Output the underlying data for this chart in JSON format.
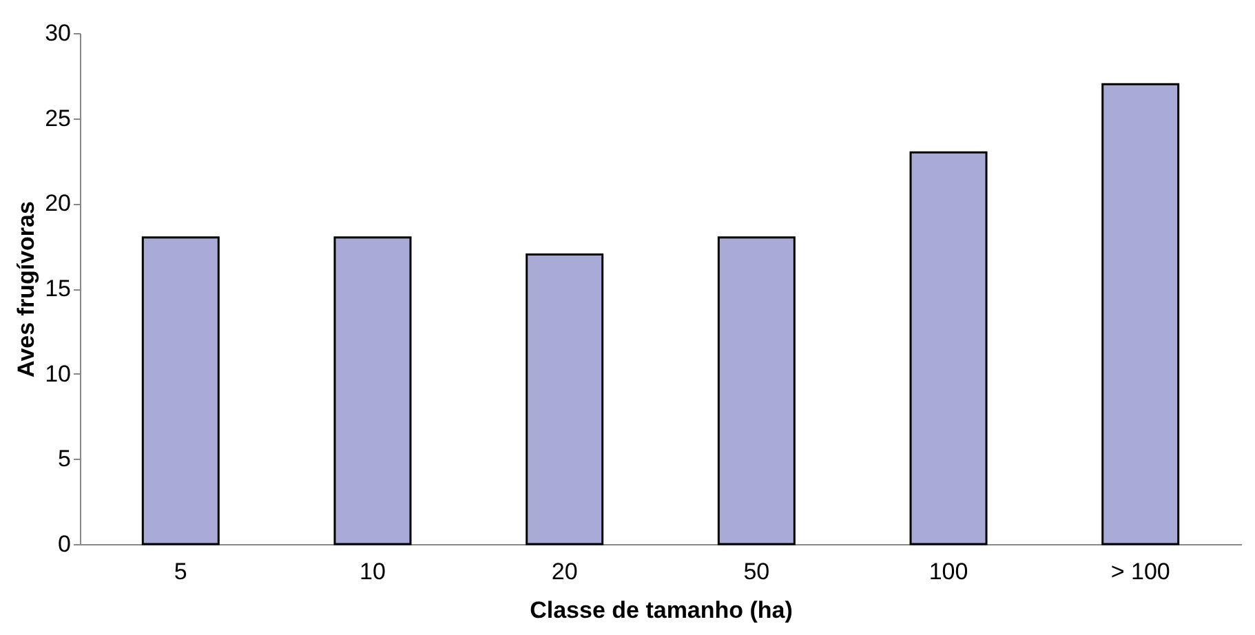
{
  "chart_data": {
    "type": "bar",
    "xlabel": "Classe de tamanho (ha)",
    "ylabel": "Aves frugívoras",
    "categories": [
      "5",
      "10",
      "20",
      "50",
      "100",
      "> 100"
    ],
    "values": [
      18,
      18,
      17,
      18,
      23,
      27
    ],
    "color": "#a9aad6",
    "ylim": [
      0,
      30
    ],
    "yticks": [
      0,
      5,
      10,
      15,
      20,
      25,
      30
    ],
    "grid": false
  }
}
